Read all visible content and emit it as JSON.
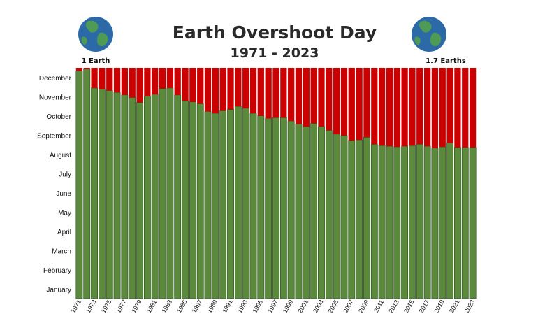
{
  "header": {
    "title": "Earth Overshoot Day",
    "subtitle": "1971 - 2023",
    "left_label": "1 Earth",
    "right_label": "1.7 Earths",
    "left_icon": "earth-globe-icon",
    "right_icon": "earth-globe-icon"
  },
  "chart_data": {
    "type": "bar",
    "title": "Earth Overshoot Day",
    "subtitle": "1971 - 2023",
    "xlabel": "",
    "ylabel": "",
    "stacked": true,
    "months": [
      "January",
      "February",
      "March",
      "April",
      "May",
      "June",
      "July",
      "August",
      "September",
      "October",
      "November",
      "December"
    ],
    "year_ticks": [
      "1971",
      "1973",
      "1975",
      "1977",
      "1979",
      "1981",
      "1983",
      "1985",
      "1987",
      "1989",
      "1991",
      "1993",
      "1995",
      "1997",
      "1999",
      "2001",
      "2003",
      "2005",
      "2007",
      "2009",
      "2011",
      "2013",
      "2015",
      "2017",
      "2019",
      "2021",
      "2023"
    ],
    "x": [
      1971,
      1972,
      1973,
      1974,
      1975,
      1976,
      1977,
      1978,
      1979,
      1980,
      1981,
      1982,
      1983,
      1984,
      1985,
      1986,
      1987,
      1988,
      1989,
      1990,
      1991,
      1992,
      1993,
      1994,
      1995,
      1996,
      1997,
      1998,
      1999,
      2000,
      2001,
      2002,
      2003,
      2004,
      2005,
      2006,
      2007,
      2008,
      2009,
      2010,
      2011,
      2012,
      2013,
      2014,
      2015,
      2016,
      2017,
      2018,
      2019,
      2020,
      2021,
      2022,
      2023
    ],
    "series": [
      {
        "key": "green",
        "color": "#5b8a3c",
        "values": [
          360,
          363,
          333,
          331,
          329,
          326,
          322,
          318,
          310,
          320,
          323,
          332,
          333,
          322,
          313,
          311,
          308,
          296,
          293,
          297,
          299,
          304,
          301,
          293,
          289,
          285,
          286,
          286,
          281,
          276,
          272,
          277,
          272,
          266,
          260,
          258,
          250,
          251,
          255,
          244,
          242,
          241,
          240,
          241,
          242,
          244,
          241,
          238,
          240,
          246,
          239,
          239,
          239
        ]
      },
      {
        "key": "red",
        "color": "#cc0000",
        "values": [
          5,
          2,
          32,
          34,
          36,
          39,
          43,
          47,
          55,
          45,
          42,
          33,
          32,
          43,
          52,
          54,
          57,
          69,
          72,
          68,
          66,
          61,
          64,
          72,
          76,
          80,
          79,
          79,
          84,
          89,
          93,
          88,
          93,
          99,
          105,
          107,
          115,
          114,
          110,
          121,
          123,
          124,
          125,
          124,
          123,
          121,
          124,
          127,
          125,
          119,
          126,
          126,
          126
        ]
      }
    ],
    "ylim": [
      0,
      365
    ],
    "colors": {
      "overshoot": "#cc0000",
      "within": "#5b8a3c",
      "bar_outline": "#2b4a1e"
    }
  }
}
